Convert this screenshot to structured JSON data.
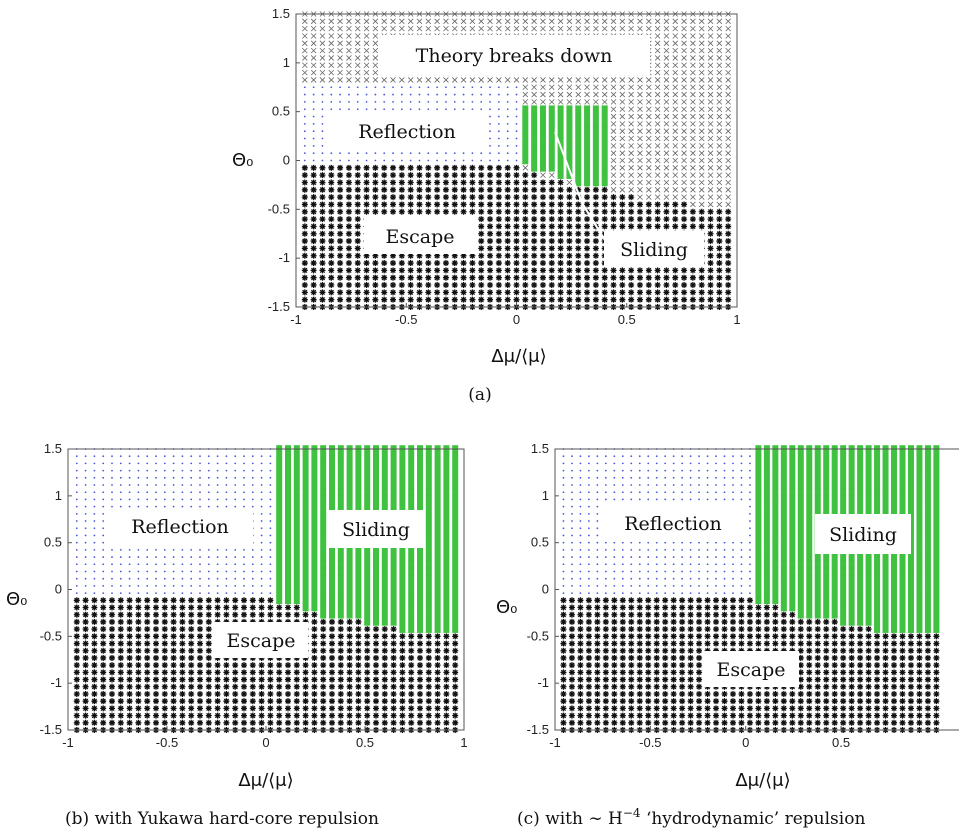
{
  "chart_data": [
    {
      "type": "scatter",
      "panel": "a",
      "caption": "(a)",
      "xlabel": "Δμ/⟨μ⟩",
      "ylabel": "Θ₀",
      "xlim": [
        -1,
        1
      ],
      "ylim": [
        -1.5,
        1.5
      ],
      "xticks": [
        "-1",
        "-0.5",
        "0",
        "0.5",
        "1"
      ],
      "yticks": [
        "1.5",
        "1",
        "0.5",
        "0",
        "-0.5",
        "-1",
        "-1.5"
      ],
      "grid": false,
      "boundaries": {
        "escape_reflection": [
          [
            -1,
            -0.05
          ],
          [
            0.0,
            -0.05
          ],
          [
            0.1,
            -0.15
          ],
          [
            0.2,
            -0.22
          ],
          [
            0.3,
            -0.28
          ],
          [
            0.4,
            -0.3
          ],
          [
            0.5,
            -0.36
          ],
          [
            0.6,
            -0.4
          ],
          [
            0.7,
            -0.43
          ],
          [
            0.8,
            -0.46
          ],
          [
            0.9,
            -0.48
          ],
          [
            1.0,
            -0.5
          ]
        ],
        "breakdown_bottom": [
          [
            -1,
            0.78
          ],
          [
            -0.9,
            0.78
          ],
          [
            -0.8,
            0.82
          ],
          [
            0.1,
            0.82
          ],
          [
            0.3,
            0.4
          ],
          [
            0.45,
            0.3
          ],
          [
            0.6,
            -0.2
          ],
          [
            0.8,
            -0.42
          ],
          [
            1.0,
            -0.5
          ]
        ],
        "sliding_region": {
          "x": [
            0.03,
            0.41
          ],
          "top": 0.55,
          "bottom_left": -0.05,
          "bottom_right": -0.32
        }
      },
      "regions": [
        {
          "name": "theory-breaks-down",
          "label": "Theory breaks down",
          "color": "#666666",
          "marker": "x"
        },
        {
          "name": "reflection",
          "label": "Reflection",
          "color": "#4a5adb",
          "marker": "dot"
        },
        {
          "name": "sliding",
          "label": "Sliding",
          "color": "#3fc23f",
          "marker": "square"
        },
        {
          "name": "escape",
          "label": "Escape",
          "color": "#111111",
          "marker": "star"
        }
      ]
    },
    {
      "type": "scatter",
      "panel": "b",
      "caption": "(b) with Yukawa hard-core repulsion",
      "xlabel": "Δμ/⟨μ⟩",
      "ylabel": "Θ₀",
      "xlim": [
        -1,
        1
      ],
      "ylim": [
        -1.5,
        1.5
      ],
      "xticks": [
        "-1",
        "-0.5",
        "0",
        "0.5",
        "1"
      ],
      "yticks": [
        "1.5",
        "1",
        "0.5",
        "0",
        "-0.5",
        "-1",
        "-1.5"
      ],
      "grid": false,
      "boundaries": {
        "escape_reflection": [
          [
            -1,
            -0.05
          ],
          [
            0.0,
            -0.05
          ],
          [
            0.1,
            -0.15
          ],
          [
            0.2,
            -0.22
          ],
          [
            0.3,
            -0.28
          ],
          [
            0.4,
            -0.3
          ],
          [
            0.5,
            -0.36
          ],
          [
            0.6,
            -0.4
          ],
          [
            0.7,
            -0.43
          ],
          [
            0.8,
            -0.44
          ],
          [
            0.9,
            -0.44
          ],
          [
            1.0,
            -0.48
          ]
        ],
        "sliding_left_edge": 0.03
      },
      "regions": [
        {
          "name": "reflection",
          "label": "Reflection",
          "color": "#4a5adb",
          "marker": "dot"
        },
        {
          "name": "sliding",
          "label": "Sliding",
          "color": "#3fc23f",
          "marker": "square"
        },
        {
          "name": "escape",
          "label": "Escape",
          "color": "#111111",
          "marker": "star"
        }
      ]
    },
    {
      "type": "scatter",
      "panel": "c",
      "caption": "(c) with ∼ H",
      "caption_sup": "−4",
      "caption_rest": " ‘hydrodynamic’ repulsion",
      "xlabel": "Δμ/⟨μ⟩",
      "ylabel": "Θ₀",
      "xlim": [
        -1,
        1
      ],
      "ylim": [
        -1.5,
        1.5
      ],
      "xticks": [
        "-1",
        "-0.5",
        "0",
        "0.5"
      ],
      "yticks": [
        "1.5",
        "1",
        "0.5",
        "0",
        "-0.5",
        "-1",
        "-1.5"
      ],
      "grid": false,
      "boundaries": {
        "escape_reflection": [
          [
            -1,
            -0.05
          ],
          [
            0.0,
            -0.05
          ],
          [
            0.1,
            -0.15
          ],
          [
            0.2,
            -0.22
          ],
          [
            0.3,
            -0.28
          ],
          [
            0.4,
            -0.3
          ],
          [
            0.5,
            -0.36
          ],
          [
            0.6,
            -0.4
          ],
          [
            0.7,
            -0.43
          ],
          [
            0.8,
            -0.44
          ],
          [
            0.9,
            -0.44
          ],
          [
            1.0,
            -0.48
          ]
        ],
        "sliding_left_edge": 0.03
      },
      "regions": [
        {
          "name": "reflection",
          "label": "Reflection",
          "color": "#4a5adb",
          "marker": "dot"
        },
        {
          "name": "sliding",
          "label": "Sliding",
          "color": "#3fc23f",
          "marker": "square"
        },
        {
          "name": "escape",
          "label": "Escape",
          "color": "#111111",
          "marker": "star"
        }
      ]
    }
  ]
}
